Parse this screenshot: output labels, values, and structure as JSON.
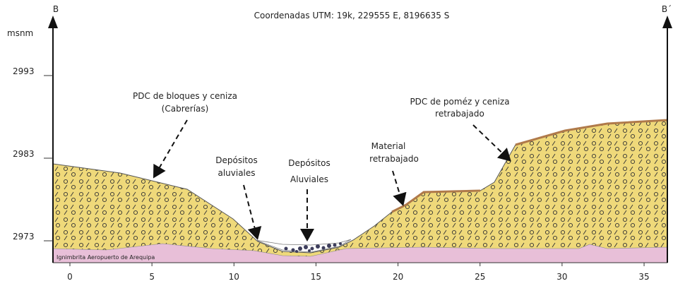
{
  "header": {
    "title": "Coordenadas UTM: 19k, 229555 E, 8196635 S",
    "left_label": "B",
    "right_label": "B´",
    "y_unit": "msnm"
  },
  "axes": {
    "x_ticks": [
      0,
      5,
      10,
      15,
      20,
      25,
      30,
      35
    ],
    "y_ticks": [
      2973,
      2983,
      2993
    ]
  },
  "annotations": [
    {
      "lines": [
        "PDC de bloques y ceniza",
        "(Cabrerías)"
      ]
    },
    {
      "lines": [
        "Depósitos",
        "aluviales"
      ]
    },
    {
      "lines": [
        "Depósitos",
        "Aluviales"
      ]
    },
    {
      "lines": [
        "Material",
        "retrabajado"
      ]
    },
    {
      "lines": [
        "PDC de poméz y ceniza",
        "retrabajado"
      ]
    }
  ],
  "layers": {
    "base": "Ignimbrita Aeropuerto de Arequipa"
  }
}
